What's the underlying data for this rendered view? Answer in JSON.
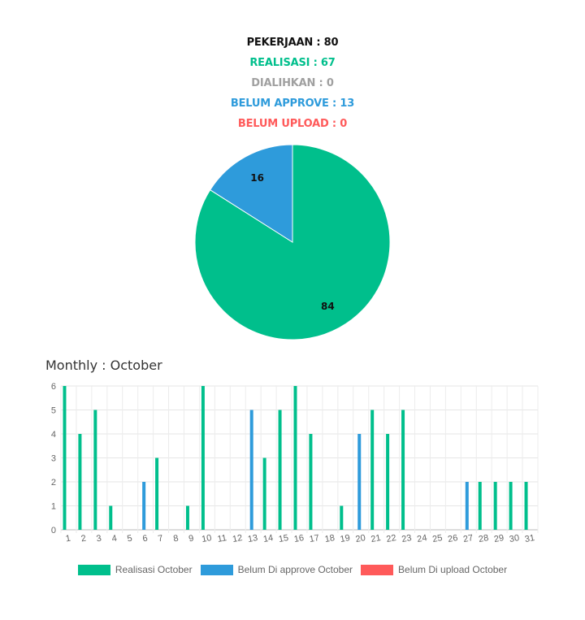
{
  "summary": {
    "pekerjaan": "PEKERJAAN : 80",
    "realisasi": "REALISASI : 67",
    "dialihkan": "DIALIHKAN : 0",
    "belum_approve": "BELUM APPROVE : 13",
    "belum_upload": "BELUM UPLOAD : 0"
  },
  "colors": {
    "realisasi": "#00bf8c",
    "approve": "#2e9bdb",
    "upload": "#ff5a5a",
    "dialihkan": "#a0a0a0",
    "pekerjaan": "#111111"
  },
  "chart_data": [
    {
      "type": "pie",
      "slices": [
        {
          "label": "84",
          "value": 84,
          "color": "#00bf8c"
        },
        {
          "label": "16",
          "value": 16,
          "color": "#2e9bdb"
        }
      ]
    },
    {
      "type": "bar",
      "title": "Monthly : October",
      "categories": [
        "1",
        "2",
        "3",
        "4",
        "5",
        "6",
        "7",
        "8",
        "9",
        "10",
        "11",
        "12",
        "13",
        "14",
        "15",
        "16",
        "17",
        "18",
        "19",
        "20",
        "21",
        "22",
        "23",
        "24",
        "25",
        "26",
        "27",
        "28",
        "29",
        "30",
        "31"
      ],
      "ylim": [
        0,
        6
      ],
      "yticks": [
        "0",
        "1",
        "2",
        "3",
        "4",
        "5",
        "6"
      ],
      "grid": true,
      "legend_position": "bottom",
      "series": [
        {
          "name": "Realisasi October",
          "color": "#00bf8c",
          "values": [
            6,
            4,
            5,
            1,
            0,
            0,
            3,
            0,
            1,
            6,
            0,
            0,
            0,
            3,
            5,
            6,
            4,
            0,
            1,
            0,
            5,
            4,
            5,
            0,
            0,
            0,
            0,
            2,
            2,
            2,
            2
          ]
        },
        {
          "name": "Belum Di approve October",
          "color": "#2e9bdb",
          "values": [
            0,
            0,
            0,
            0,
            0,
            2,
            0,
            0,
            0,
            0,
            0,
            0,
            5,
            0,
            0,
            0,
            0,
            0,
            0,
            4,
            0,
            0,
            0,
            0,
            0,
            0,
            2,
            0,
            0,
            0,
            0
          ]
        },
        {
          "name": "Belum Di upload October",
          "color": "#ff5a5a",
          "values": [
            0,
            0,
            0,
            0,
            0,
            0,
            0,
            0,
            0,
            0,
            0,
            0,
            0,
            0,
            0,
            0,
            0,
            0,
            0,
            0,
            0,
            0,
            0,
            0,
            0,
            0,
            0,
            0,
            0,
            0,
            0
          ]
        }
      ]
    }
  ]
}
